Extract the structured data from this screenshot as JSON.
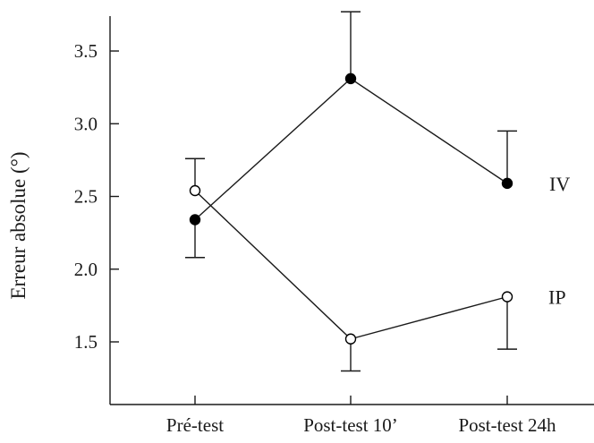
{
  "chart_data": {
    "type": "line",
    "title": "",
    "xlabel": "",
    "ylabel": "Erreur absolue (°)",
    "categories": [
      "Pré-test",
      "Post-test 10’",
      "Post-test 24h"
    ],
    "ylim": [
      1.0,
      3.9
    ],
    "yticks": [
      1.5,
      2.0,
      2.5,
      3.0,
      3.5
    ],
    "ytick_labels": [
      "1.5",
      "2.0",
      "2.5",
      "3.0",
      "3.5"
    ],
    "grid": false,
    "series": [
      {
        "name": "IV",
        "marker": "filled-circle",
        "values": [
          2.34,
          3.31,
          2.59
        ],
        "errors": [
          0.26,
          0.46,
          0.36
        ],
        "error_direction": [
          "down",
          "up",
          "up"
        ]
      },
      {
        "name": "IP",
        "marker": "open-circle",
        "values": [
          2.54,
          1.52,
          1.81
        ],
        "errors": [
          0.22,
          0.22,
          0.36
        ],
        "error_direction": [
          "up",
          "down",
          "down"
        ]
      }
    ]
  }
}
